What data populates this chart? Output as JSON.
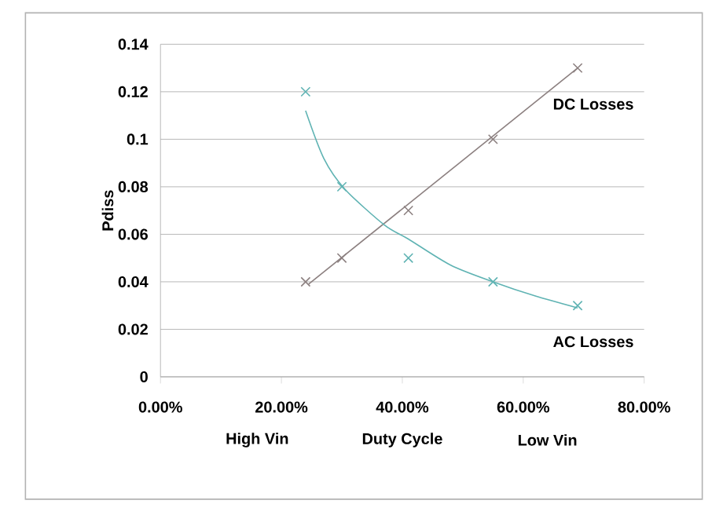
{
  "chart_data": {
    "type": "scatter",
    "xlabel": "Duty Cycle",
    "ylabel": "Pdiss",
    "x": [
      0.24,
      0.3,
      0.41,
      0.55,
      0.69
    ],
    "series": [
      {
        "name": "DC Losses",
        "color": "#8c8080",
        "marker": "cross",
        "values": [
          0.04,
          0.05,
          0.07,
          0.1,
          0.13
        ]
      },
      {
        "name": "AC Losses",
        "color": "#5fb3b3",
        "marker": "cross",
        "values": [
          0.12,
          0.08,
          0.05,
          0.04,
          0.03
        ]
      },
      {
        "type": "line",
        "color": "#8c8080",
        "marker": "none",
        "x": [
          0.245,
          0.69
        ],
        "values": [
          0.039,
          0.13
        ]
      },
      {
        "type": "line",
        "color": "#5fb3b3",
        "marker": "none",
        "x": [
          0.24,
          0.27,
          0.305,
          0.37,
          0.41,
          0.48,
          0.55,
          0.62,
          0.69
        ],
        "values": [
          0.112,
          0.092,
          0.079,
          0.064,
          0.058,
          0.047,
          0.04,
          0.034,
          0.029
        ]
      }
    ],
    "annotations": [
      "High Vin",
      "Low Vin"
    ],
    "xlim": [
      0,
      0.8
    ],
    "ylim": [
      0,
      0.14
    ],
    "xticks": [
      {
        "value": 0,
        "label": "0.00%"
      },
      {
        "value": 0.2,
        "label": "20.00%"
      },
      {
        "value": 0.4,
        "label": "40.00%"
      },
      {
        "value": 0.6,
        "label": "60.00%"
      },
      {
        "value": 0.8,
        "label": "80.00%"
      }
    ],
    "yticks": [
      0,
      0.02,
      0.04,
      0.06,
      0.08,
      0.1,
      0.12,
      0.14
    ],
    "grid": "y"
  }
}
